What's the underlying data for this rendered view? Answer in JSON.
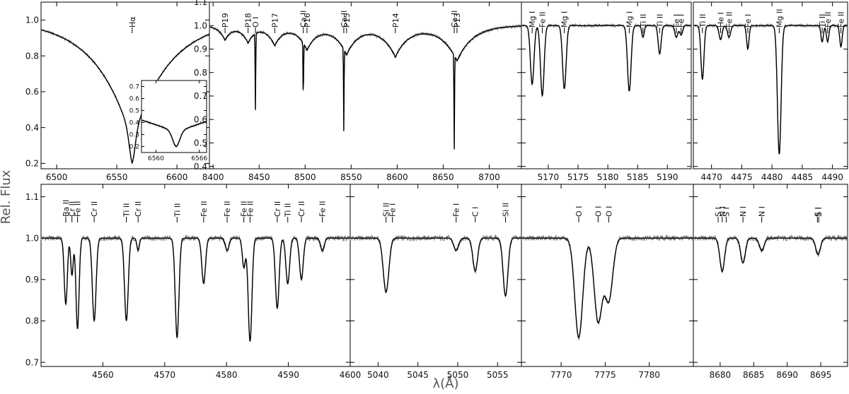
{
  "figure": {
    "ylabel": "Rel. Flux",
    "xlabel": "λ(Å)"
  },
  "colors": {
    "observed": "#808080",
    "model": "#000000",
    "frame": "#000000"
  },
  "chart_data": [
    {
      "type": "line",
      "id": "halpha",
      "xlim": [
        6487,
        6627
      ],
      "ylim": [
        0.17,
        1.1
      ],
      "xticks": [
        6500,
        6550,
        6600
      ],
      "yticks": [
        0.2,
        0.4,
        0.6,
        0.8,
        1.0
      ],
      "line_labels": [
        {
          "text": "Hα",
          "x": 6562.8
        }
      ],
      "series": [
        {
          "role": "model",
          "profile": "balmer",
          "depth": 0.8,
          "center": 6562.8,
          "width": 30,
          "core": 2.5
        }
      ],
      "inset": {
        "xlim": [
          6558,
          6567
        ],
        "ylim": [
          0.15,
          0.75
        ],
        "xticks": [
          6560,
          6566
        ],
        "yticks": [
          0.2,
          0.3,
          0.4,
          0.5,
          0.6,
          0.7
        ],
        "series": [
          {
            "role": "model",
            "profile": "balmer",
            "depth": 0.8,
            "center": 6562.8,
            "width": 30,
            "core": 0.5
          }
        ]
      }
    },
    {
      "type": "line",
      "id": "paschen",
      "xlim": [
        8396,
        8735
      ],
      "ylim": [
        0.39,
        1.1
      ],
      "xticks": [
        8400,
        8450,
        8500,
        8550,
        8600,
        8650,
        8700
      ],
      "yticks": [
        0.4,
        0.5,
        0.6,
        0.7,
        0.8,
        0.9,
        1.0,
        1.1
      ],
      "line_labels": [
        {
          "text": "P19",
          "x": 8413
        },
        {
          "text": "P18",
          "x": 8438
        },
        {
          "text": "O I",
          "x": 8446
        },
        {
          "text": "P17",
          "x": 8467
        },
        {
          "text": "Ca II",
          "x": 8498
        },
        {
          "text": "P16",
          "x": 8502
        },
        {
          "text": "Ca II",
          "x": 8542
        },
        {
          "text": "P15",
          "x": 8545
        },
        {
          "text": "P14",
          "x": 8598
        },
        {
          "text": "Ca II",
          "x": 8662
        },
        {
          "text": "P13",
          "x": 8665
        }
      ],
      "series": [
        {
          "role": "model",
          "lines": [
            [
              8446,
              0.33,
              0.3
            ],
            [
              8498,
              0.25,
              0.3
            ],
            [
              8542,
              0.35,
              0.3
            ],
            [
              8662,
              0.4,
              0.3
            ]
          ],
          "broad": [
            [
              8413,
              0.06,
              7
            ],
            [
              8438,
              0.07,
              8
            ],
            [
              8467,
              0.08,
              9
            ],
            [
              8502,
              0.1,
              11
            ],
            [
              8545,
              0.12,
              13
            ],
            [
              8598,
              0.13,
              15
            ],
            [
              8665,
              0.15,
              17
            ]
          ]
        }
      ]
    },
    {
      "type": "line",
      "id": "mg-b",
      "xlim": [
        5165.5,
        5194
      ],
      "ylim": [
        0.39,
        1.1
      ],
      "xticks": [
        5170,
        5175,
        5180,
        5185,
        5190
      ],
      "line_labels": [
        {
          "text": "Mg I",
          "x": 5167.3
        },
        {
          "text": "Fe II",
          "x": 5169.0
        },
        {
          "text": "Mg I",
          "x": 5172.7
        },
        {
          "text": "Mg I",
          "x": 5183.6
        },
        {
          "text": "Ti II",
          "x": 5185.9
        },
        {
          "text": "Ti II",
          "x": 5188.7
        },
        {
          "text": "Fe I",
          "x": 5191.5
        },
        {
          "text": "Fe I",
          "x": 5192.3
        }
      ],
      "series": [
        {
          "role": "model",
          "lines": [
            [
              5167.3,
              0.25,
              0.3
            ],
            [
              5169.0,
              0.3,
              0.3
            ],
            [
              5172.7,
              0.27,
              0.3
            ],
            [
              5183.6,
              0.28,
              0.3
            ],
            [
              5185.9,
              0.05,
              0.2
            ],
            [
              5188.7,
              0.12,
              0.25
            ],
            [
              5191.5,
              0.05,
              0.25
            ],
            [
              5192.3,
              0.04,
              0.25
            ]
          ]
        }
      ]
    },
    {
      "type": "line",
      "id": "mg-ii",
      "xlim": [
        4467,
        4492.5
      ],
      "ylim": [
        0.39,
        1.1
      ],
      "xticks": [
        4470,
        4475,
        4480,
        4485,
        4490
      ],
      "line_labels": [
        {
          "text": "Ti II",
          "x": 4468.5
        },
        {
          "text": "He I",
          "x": 4471.5
        },
        {
          "text": "Fe II",
          "x": 4472.9
        },
        {
          "text": "Fe I",
          "x": 4476.0
        },
        {
          "text": "Mg II",
          "x": 4481.2
        },
        {
          "text": "Ti II",
          "x": 4488.3
        },
        {
          "text": "Fe II",
          "x": 4489.2
        },
        {
          "text": "Fe II",
          "x": 4491.4
        }
      ],
      "series": [
        {
          "role": "model",
          "lines": [
            [
              4468.5,
              0.23,
              0.25
            ],
            [
              4471.5,
              0.06,
              0.25
            ],
            [
              4472.9,
              0.05,
              0.25
            ],
            [
              4476.0,
              0.1,
              0.2
            ],
            [
              4481.2,
              0.55,
              0.3
            ],
            [
              4488.3,
              0.07,
              0.2
            ],
            [
              4489.2,
              0.07,
              0.2
            ],
            [
              4491.4,
              0.09,
              0.2
            ]
          ]
        }
      ]
    },
    {
      "type": "line",
      "id": "cr-ti-fe",
      "xlim": [
        4550,
        4600
      ],
      "ylim": [
        0.69,
        1.13
      ],
      "xticks": [
        4560,
        4570,
        4580,
        4590,
        4600
      ],
      "yticks": [
        0.7,
        0.8,
        0.9,
        1.0,
        1.1
      ],
      "line_labels": [
        {
          "text": "Ba II",
          "x": 4554.0
        },
        {
          "text": "Cr II",
          "x": 4555.0
        },
        {
          "text": "Fe II",
          "x": 4555.9
        },
        {
          "text": "Cr II",
          "x": 4558.6
        },
        {
          "text": "Ti II",
          "x": 4563.8
        },
        {
          "text": "Cr II",
          "x": 4565.7
        },
        {
          "text": "Ti II",
          "x": 4572.0
        },
        {
          "text": "Fe II",
          "x": 4576.3
        },
        {
          "text": "Fe II",
          "x": 4580.1
        },
        {
          "text": "Fe II",
          "x": 4582.8
        },
        {
          "text": "Fe II",
          "x": 4583.8
        },
        {
          "text": "Cr II",
          "x": 4588.2
        },
        {
          "text": "Ti II",
          "x": 4589.9
        },
        {
          "text": "Cr II",
          "x": 4592.1
        },
        {
          "text": "Fe II",
          "x": 4595.5
        }
      ],
      "series": [
        {
          "role": "model",
          "lines": [
            [
              4554.0,
              0.16,
              0.25
            ],
            [
              4555.0,
              0.09,
              0.2
            ],
            [
              4555.9,
              0.22,
              0.25
            ],
            [
              4558.6,
              0.2,
              0.3
            ],
            [
              4563.8,
              0.2,
              0.3
            ],
            [
              4565.7,
              0.03,
              0.2
            ],
            [
              4572.0,
              0.24,
              0.3
            ],
            [
              4576.3,
              0.11,
              0.3
            ],
            [
              4580.1,
              0.03,
              0.3
            ],
            [
              4582.8,
              0.07,
              0.25
            ],
            [
              4583.8,
              0.25,
              0.3
            ],
            [
              4588.2,
              0.17,
              0.3
            ],
            [
              4589.9,
              0.11,
              0.3
            ],
            [
              4592.1,
              0.1,
              0.3
            ],
            [
              4595.5,
              0.03,
              0.3
            ]
          ]
        }
      ]
    },
    {
      "type": "line",
      "id": "si-c",
      "xlim": [
        5036.5,
        5058
      ],
      "ylim": [
        0.69,
        1.13
      ],
      "xticks": [
        5040,
        5045,
        5050,
        5055
      ],
      "line_labels": [
        {
          "text": "Si II",
          "x": 5041.0
        },
        {
          "text": "Fe I",
          "x": 5041.8
        },
        {
          "text": "Fe I",
          "x": 5049.8
        },
        {
          "text": "C I",
          "x": 5052.2
        },
        {
          "text": "Si II",
          "x": 5056.0
        }
      ],
      "series": [
        {
          "role": "model",
          "lines": [
            [
              5041.0,
              0.13,
              0.35
            ],
            [
              5049.8,
              0.03,
              0.3
            ],
            [
              5052.2,
              0.08,
              0.3
            ],
            [
              5056.0,
              0.14,
              0.3
            ]
          ]
        }
      ]
    },
    {
      "type": "line",
      "id": "o-triplet",
      "xlim": [
        7765.5,
        7785
      ],
      "ylim": [
        0.69,
        1.13
      ],
      "xticks": [
        7770,
        7775,
        7780
      ],
      "line_labels": [
        {
          "text": "O I",
          "x": 7772.0
        },
        {
          "text": "O I",
          "x": 7774.2
        },
        {
          "text": "O I",
          "x": 7775.4
        }
      ],
      "series": [
        {
          "role": "model",
          "lines": [
            [
              7772.0,
              0.24,
              0.45
            ],
            [
              7774.2,
              0.2,
              0.45
            ],
            [
              7775.4,
              0.15,
              0.45
            ]
          ]
        }
      ]
    },
    {
      "type": "line",
      "id": "s-n",
      "xlim": [
        8676,
        8699
      ],
      "ylim": [
        0.69,
        1.13
      ],
      "xticks": [
        8680,
        8685,
        8690,
        8695
      ],
      "line_labels": [
        {
          "text": "S I",
          "x": 8679.7
        },
        {
          "text": "N I",
          "x": 8680.3
        },
        {
          "text": "S I",
          "x": 8680.9
        },
        {
          "text": "N I",
          "x": 8683.4
        },
        {
          "text": "N I",
          "x": 8686.2
        },
        {
          "text": "S I",
          "x": 8694.5
        },
        {
          "text": "S I",
          "x": 8694.7
        }
      ],
      "series": [
        {
          "role": "model",
          "lines": [
            [
              8680.3,
              0.08,
              0.35
            ],
            [
              8683.4,
              0.06,
              0.35
            ],
            [
              8686.2,
              0.03,
              0.35
            ],
            [
              8694.6,
              0.04,
              0.35
            ]
          ]
        }
      ]
    }
  ]
}
